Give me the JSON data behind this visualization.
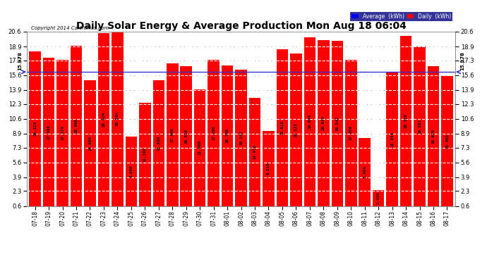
{
  "title": "Daily Solar Energy & Average Production Mon Aug 18 06:04",
  "copyright": "Copyright 2014 Cartronics.com",
  "categories": [
    "07-18",
    "07-19",
    "07-20",
    "07-21",
    "07-22",
    "07-23",
    "07-24",
    "07-25",
    "07-26",
    "07-27",
    "07-28",
    "07-29",
    "07-30",
    "07-31",
    "08-01",
    "08-02",
    "08-03",
    "08-04",
    "08-05",
    "08-06",
    "08-07",
    "08-08",
    "08-09",
    "08-10",
    "08-11",
    "08-12",
    "08-13",
    "08-14",
    "08-15",
    "08-16",
    "08-17"
  ],
  "values": [
    18.324,
    17.606,
    17.378,
    18.968,
    14.986,
    20.424,
    20.594,
    8.6,
    12.398,
    15.03,
    17.0,
    16.616,
    13.99,
    17.392,
    16.7,
    16.242,
    12.976,
    9.21,
    18.618,
    18.128,
    19.944,
    19.644,
    19.542,
    17.356,
    8.404,
    2.436,
    15.944,
    20.128,
    18.882,
    16.67,
    15.492
  ],
  "average": 15.978,
  "bar_color": "#FF0000",
  "avg_line_color": "#3333CC",
  "ylim_min": 0.6,
  "ylim_max": 20.6,
  "yticks": [
    0.6,
    2.3,
    3.9,
    5.6,
    7.3,
    8.9,
    10.6,
    12.3,
    13.9,
    15.6,
    17.3,
    18.9,
    20.6
  ],
  "background_color": "#FFFFFF",
  "plot_bg_color": "#FFFFFF",
  "grid_color": "#AAAAAA",
  "title_fontsize": 10,
  "legend_avg_color": "#0000FF",
  "legend_daily_color": "#FF0000",
  "avg_label": "15.978"
}
